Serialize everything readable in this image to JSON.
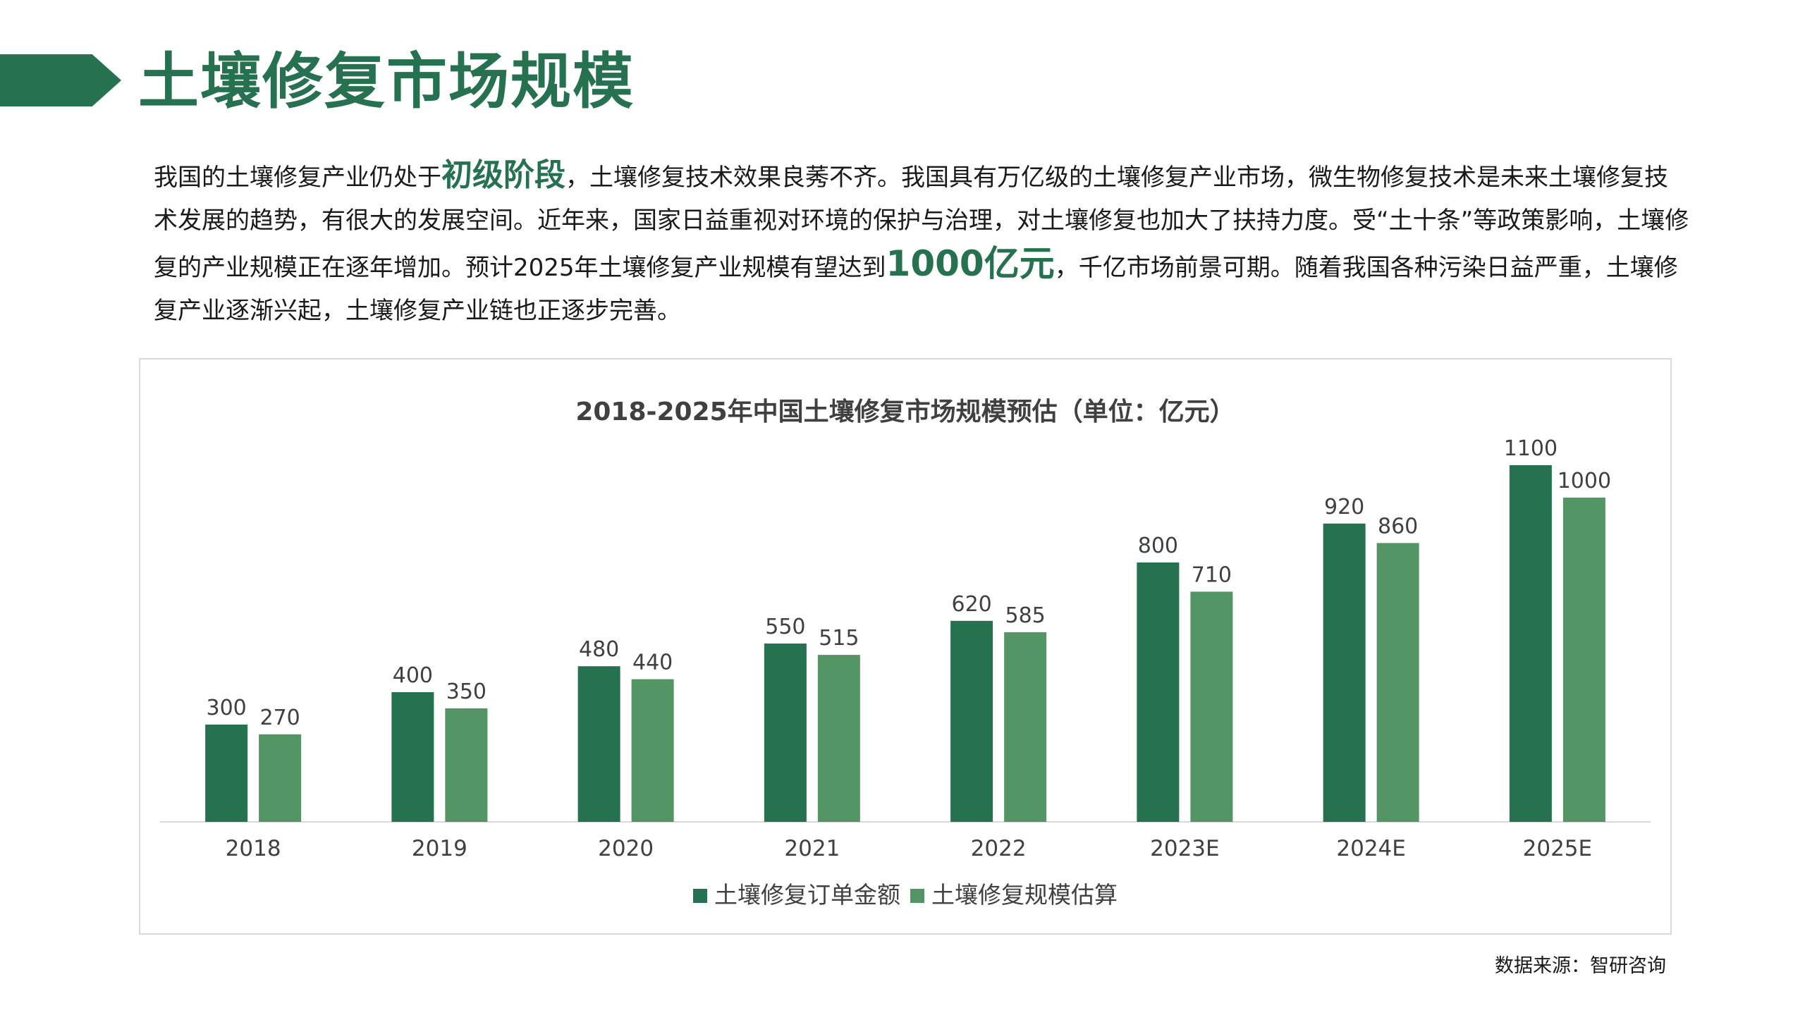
{
  "header": {
    "title": "土壤修复市场规模"
  },
  "intro": {
    "part1": "我国的土壤修复产业仍处于",
    "highlight1": "初级阶段",
    "part2": "，土壤修复技术效果良莠不齐。我国具有万亿级的土壤修复产业市场，微生物修复技术是未来土壤修复技术发展的趋势，有很大的发展空间。近年来，国家日益重视对环境的保护与治理，对土壤修复也加大了扶持力度。受“土十条”等政策影响，土壤修复的产业规模正在逐年增加。预计2025年土壤修复产业规模有望达到",
    "highlight2": "1000亿元",
    "part3": "，千亿市场前景可期。随着我国各种污染日益严重，土壤修复产业逐渐兴起，土壤修复产业链也正逐步完善。"
  },
  "source": "数据来源：智研咨询",
  "colors": {
    "brand": "#257150",
    "series1": "#257150",
    "series2": "#549566",
    "title_text": "#404040",
    "axis_text": "#404040"
  },
  "chart_data": {
    "type": "bar",
    "title": "2018-2025年中国土壤修复市场规模预估（单位：亿元）",
    "categories": [
      "2018",
      "2019",
      "2020",
      "2021",
      "2022",
      "2023E",
      "2024E",
      "2025E"
    ],
    "series": [
      {
        "name": "土壤修复订单金额",
        "values": [
          300,
          400,
          480,
          550,
          620,
          800,
          920,
          1100
        ]
      },
      {
        "name": "土壤修复规模估算",
        "values": [
          270,
          350,
          440,
          515,
          585,
          710,
          860,
          1000
        ]
      }
    ],
    "ylim": [
      0,
      1100
    ],
    "grid": false,
    "legend": "bottom",
    "data_labels": true
  }
}
